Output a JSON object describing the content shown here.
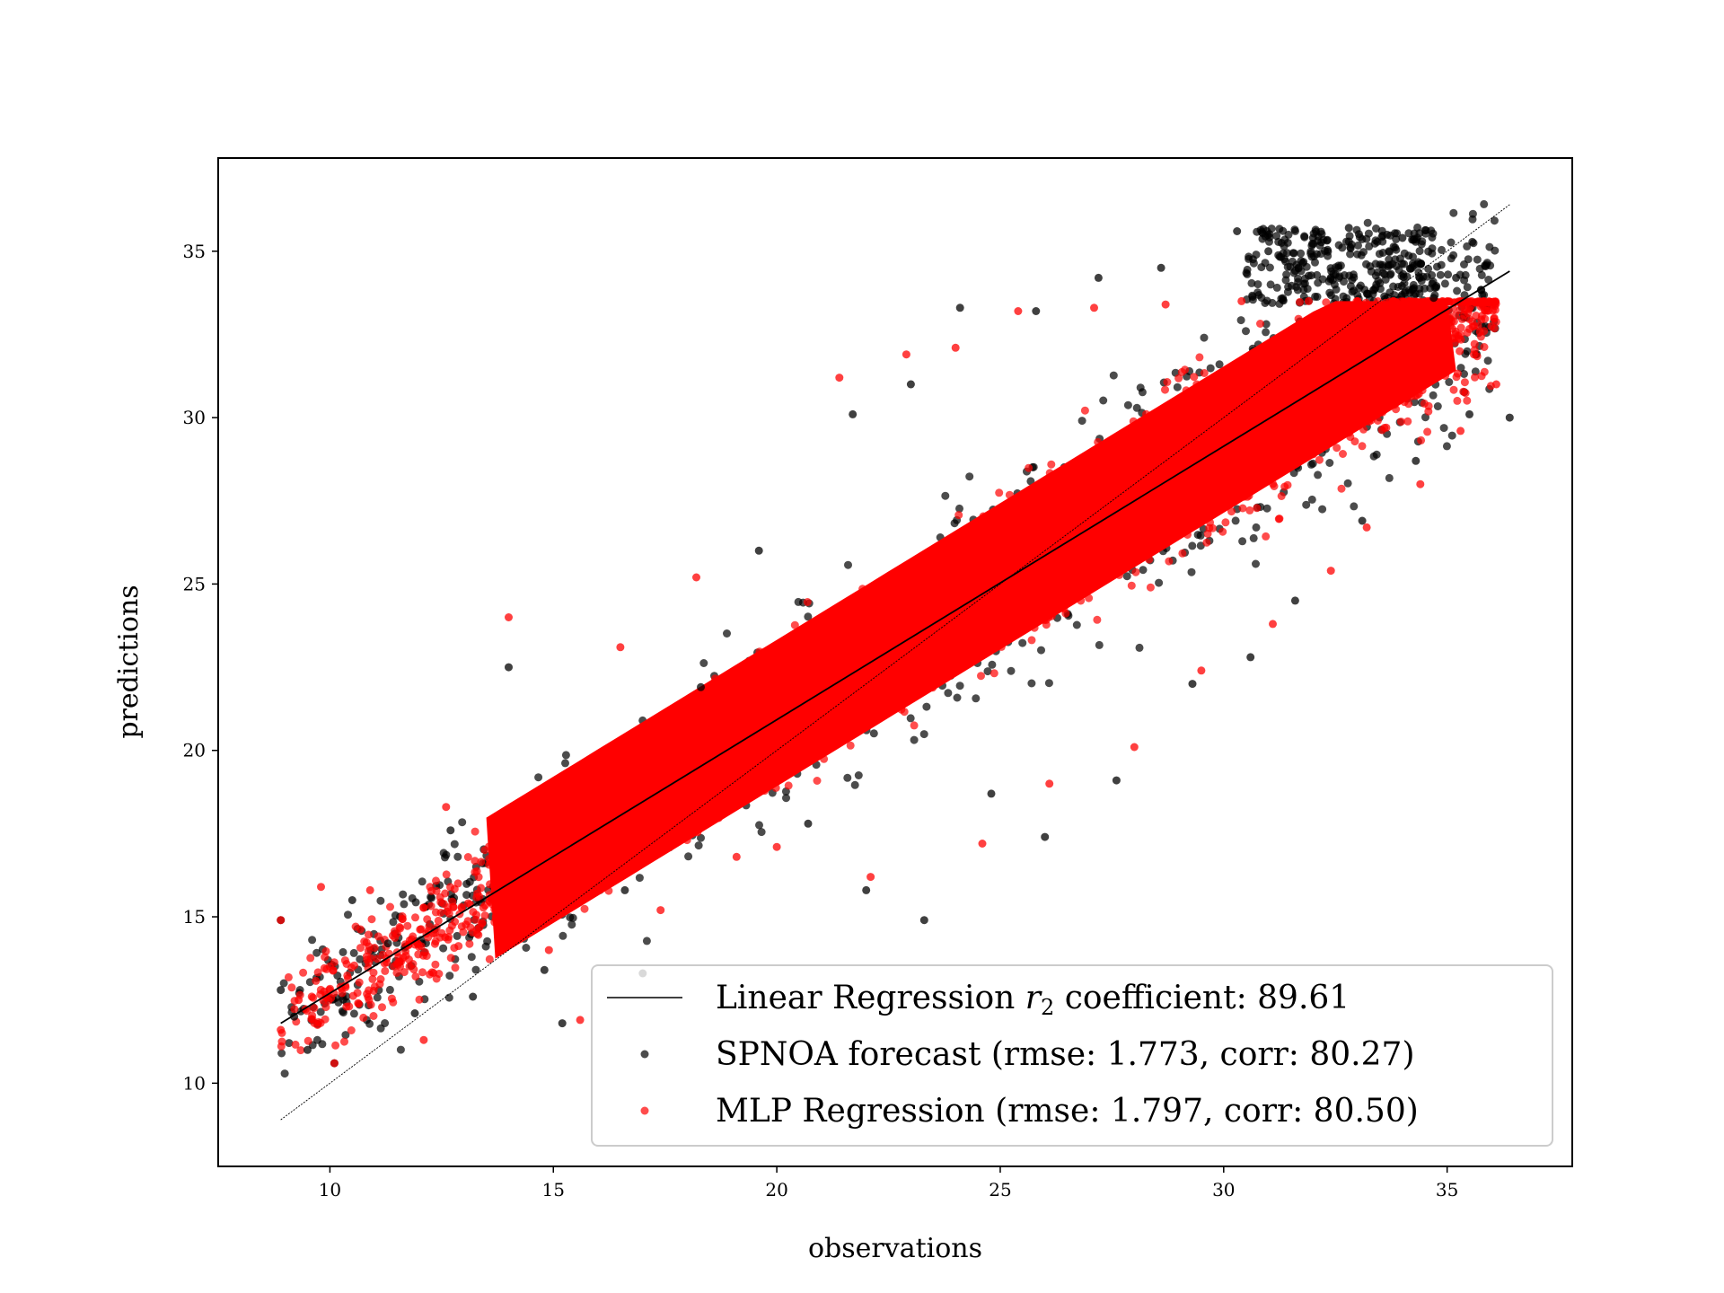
{
  "chart_data": {
    "type": "scatter",
    "xlabel": "observations",
    "ylabel": "predictions",
    "xlim": [
      7.5,
      37.8
    ],
    "ylim": [
      7.5,
      37.8
    ],
    "x_ticks": [
      10,
      15,
      20,
      25,
      30,
      35
    ],
    "y_ticks": [
      10,
      15,
      20,
      25,
      30,
      35
    ],
    "grid": false,
    "legend_position": "lower-right",
    "legend": {
      "regression_prefix": "Linear Regression ",
      "regression_symbol": "r",
      "regression_subscript": "2",
      "regression_suffix": " coefficient: 89.61",
      "spnoa": "SPNOA forecast (rmse: 1.773, corr: 80.27)",
      "mlp": "MLP Regression (rmse: 1.797, corr: 80.50)"
    },
    "stats": {
      "r2_coefficient": 89.61,
      "spnoa": {
        "rmse": 1.773,
        "corr": 80.27
      },
      "mlp": {
        "rmse": 1.797,
        "corr": 80.5
      }
    },
    "lines": [
      {
        "name": "Linear Regression",
        "style": "solid",
        "x": [
          8.9,
          36.4
        ],
        "y": [
          11.8,
          34.4
        ]
      },
      {
        "name": "identity",
        "style": "dotted",
        "x": [
          8.9,
          36.4
        ],
        "y": [
          8.9,
          36.4
        ]
      }
    ],
    "series": [
      {
        "name": "SPNOA forecast",
        "color": "#000000",
        "sample_points": [
          [
            8.9,
            14.9
          ],
          [
            8.9,
            12.8
          ],
          [
            9.2,
            12.0
          ],
          [
            9.5,
            11.0
          ],
          [
            10.1,
            10.6
          ],
          [
            10.5,
            15.5
          ],
          [
            11.3,
            14.2
          ],
          [
            11.9,
            12.1
          ],
          [
            12.7,
            17.6
          ],
          [
            13.2,
            12.6
          ],
          [
            14.0,
            22.5
          ],
          [
            14.8,
            13.4
          ],
          [
            15.2,
            11.8
          ],
          [
            16.6,
            15.8
          ],
          [
            17.0,
            13.3
          ],
          [
            18.3,
            21.9
          ],
          [
            19.6,
            26.0
          ],
          [
            20.7,
            17.8
          ],
          [
            21.7,
            30.1
          ],
          [
            22.0,
            15.8
          ],
          [
            23.0,
            31.0
          ],
          [
            23.3,
            14.9
          ],
          [
            24.1,
            33.3
          ],
          [
            24.8,
            18.7
          ],
          [
            25.8,
            33.2
          ],
          [
            26.0,
            17.4
          ],
          [
            27.2,
            34.2
          ],
          [
            27.6,
            19.1
          ],
          [
            28.6,
            34.5
          ],
          [
            29.3,
            22.0
          ],
          [
            30.3,
            35.6
          ],
          [
            30.6,
            22.8
          ],
          [
            31.0,
            35.0
          ],
          [
            31.6,
            24.5
          ],
          [
            32.0,
            35.4
          ],
          [
            32.5,
            34.3
          ],
          [
            32.8,
            35.7
          ],
          [
            33.1,
            26.9
          ],
          [
            33.5,
            34.6
          ],
          [
            34.0,
            35.4
          ],
          [
            34.3,
            28.7
          ],
          [
            34.7,
            33.6
          ],
          [
            35.2,
            34.2
          ],
          [
            35.5,
            30.1
          ],
          [
            36.4,
            30.0
          ]
        ]
      },
      {
        "name": "MLP Regression",
        "color": "#ff0000",
        "sample_points": [
          [
            8.9,
            14.9
          ],
          [
            8.9,
            11.6
          ],
          [
            9.3,
            12.5
          ],
          [
            9.8,
            15.9
          ],
          [
            10.1,
            10.6
          ],
          [
            10.9,
            15.8
          ],
          [
            11.5,
            14.5
          ],
          [
            12.1,
            11.3
          ],
          [
            12.6,
            18.3
          ],
          [
            13.3,
            15.7
          ],
          [
            14.0,
            24.0
          ],
          [
            14.9,
            14.0
          ],
          [
            15.6,
            11.9
          ],
          [
            16.5,
            23.1
          ],
          [
            17.4,
            15.2
          ],
          [
            18.2,
            25.2
          ],
          [
            19.1,
            16.8
          ],
          [
            20.0,
            17.1
          ],
          [
            21.4,
            31.2
          ],
          [
            22.1,
            16.2
          ],
          [
            22.9,
            31.9
          ],
          [
            24.0,
            32.1
          ],
          [
            24.6,
            17.2
          ],
          [
            25.4,
            33.2
          ],
          [
            26.1,
            19.0
          ],
          [
            27.1,
            33.3
          ],
          [
            28.0,
            20.1
          ],
          [
            28.7,
            33.4
          ],
          [
            29.5,
            22.4
          ],
          [
            30.4,
            33.5
          ],
          [
            31.1,
            23.8
          ],
          [
            31.9,
            33.5
          ],
          [
            32.4,
            25.4
          ],
          [
            33.0,
            33.5
          ],
          [
            33.2,
            26.7
          ],
          [
            33.8,
            33.5
          ],
          [
            34.4,
            28.0
          ],
          [
            34.9,
            33.5
          ],
          [
            35.3,
            29.6
          ],
          [
            35.6,
            31.9
          ],
          [
            36.1,
            31.0
          ]
        ]
      }
    ]
  }
}
